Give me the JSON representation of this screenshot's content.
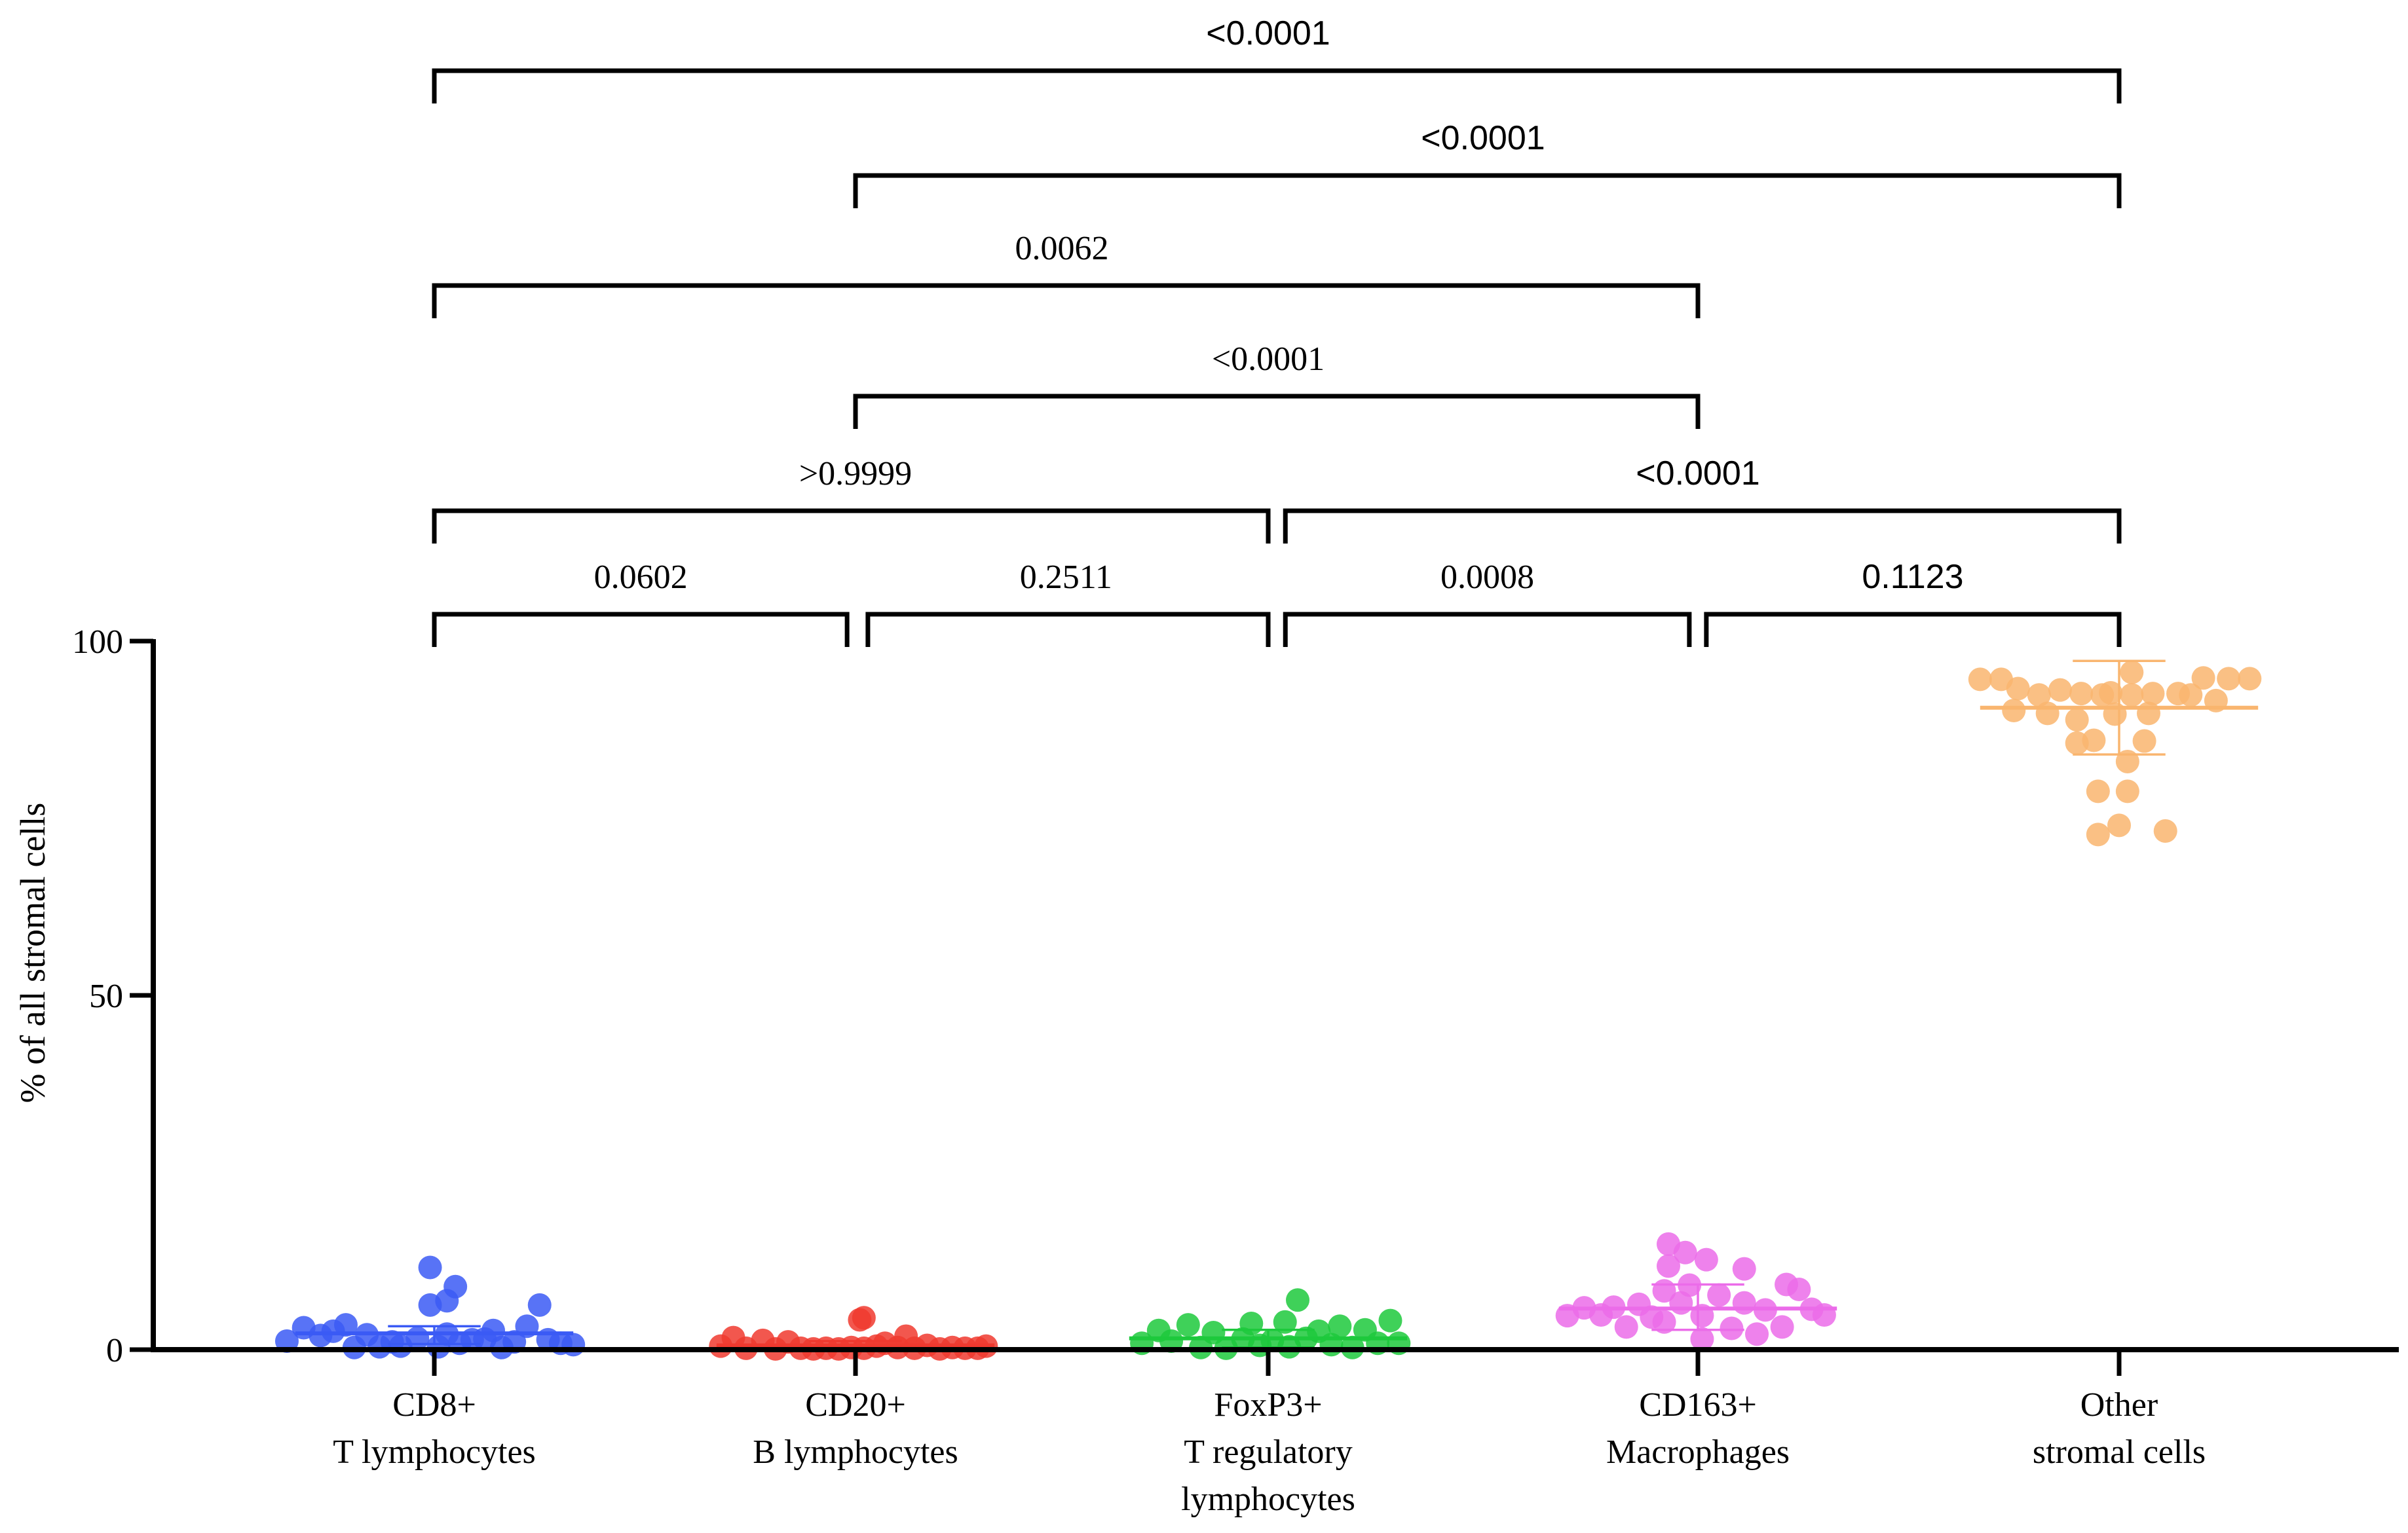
{
  "chart_data": {
    "type": "scatter",
    "ylabel": "% of all stromal cells",
    "xlabel": "",
    "title": "",
    "ylim": [
      0,
      100
    ],
    "yticks": [
      0,
      50,
      100
    ],
    "categories": [
      [
        "CD8+",
        "T lymphocytes"
      ],
      [
        "CD20+",
        "B lymphocytes"
      ],
      [
        "FoxP3+",
        "T regulatory",
        "lymphocytes"
      ],
      [
        "CD163+",
        "Macrophages"
      ],
      [
        "Other",
        "stromal cells"
      ]
    ],
    "series": [
      {
        "name": "CD8+ T lymphocytes",
        "color": "#3B5BF5",
        "mean": 2.3,
        "sd": [
          0.8,
          3.3
        ],
        "points": [
          {
            "dx": -0.35,
            "y": 1.2
          },
          {
            "dx": -0.31,
            "y": 3.1
          },
          {
            "dx": -0.27,
            "y": 2.0
          },
          {
            "dx": -0.24,
            "y": 2.6
          },
          {
            "dx": -0.21,
            "y": 3.5
          },
          {
            "dx": -0.19,
            "y": 0.3
          },
          {
            "dx": -0.16,
            "y": 2.1
          },
          {
            "dx": -0.13,
            "y": 0.4
          },
          {
            "dx": -0.1,
            "y": 1.1
          },
          {
            "dx": -0.08,
            "y": 0.5
          },
          {
            "dx": -0.04,
            "y": 1.6
          },
          {
            "dx": -0.01,
            "y": 11.6
          },
          {
            "dx": -0.01,
            "y": 6.3
          },
          {
            "dx": 0.01,
            "y": 0.4
          },
          {
            "dx": 0.03,
            "y": 2.2
          },
          {
            "dx": 0.03,
            "y": 6.9
          },
          {
            "dx": 0.05,
            "y": 8.9
          },
          {
            "dx": 0.06,
            "y": 0.9
          },
          {
            "dx": 0.09,
            "y": 1.4
          },
          {
            "dx": 0.12,
            "y": 1.5
          },
          {
            "dx": 0.14,
            "y": 2.7
          },
          {
            "dx": 0.16,
            "y": 0.3
          },
          {
            "dx": 0.19,
            "y": 1.1
          },
          {
            "dx": 0.22,
            "y": 3.3
          },
          {
            "dx": 0.25,
            "y": 6.3
          },
          {
            "dx": 0.27,
            "y": 1.4
          },
          {
            "dx": 0.3,
            "y": 0.9
          },
          {
            "dx": 0.33,
            "y": 0.7
          }
        ]
      },
      {
        "name": "CD20+ B lymphocytes",
        "color": "#F03A2F",
        "mean": 0.6,
        "sd": [
          0.1,
          1.2
        ],
        "points": [
          {
            "dx": -0.32,
            "y": 0.5
          },
          {
            "dx": -0.29,
            "y": 1.7
          },
          {
            "dx": -0.26,
            "y": 0.2
          },
          {
            "dx": -0.22,
            "y": 1.3
          },
          {
            "dx": -0.19,
            "y": 0.1
          },
          {
            "dx": -0.16,
            "y": 1.1
          },
          {
            "dx": -0.13,
            "y": 0.2
          },
          {
            "dx": -0.1,
            "y": 0.1
          },
          {
            "dx": -0.07,
            "y": 0.2
          },
          {
            "dx": -0.04,
            "y": 0.1
          },
          {
            "dx": -0.01,
            "y": 0.3
          },
          {
            "dx": 0.01,
            "y": 4.2
          },
          {
            "dx": 0.02,
            "y": 0.2
          },
          {
            "dx": 0.02,
            "y": 4.5
          },
          {
            "dx": 0.05,
            "y": 0.5
          },
          {
            "dx": 0.07,
            "y": 0.9
          },
          {
            "dx": 0.1,
            "y": 0.3
          },
          {
            "dx": 0.12,
            "y": 1.9
          },
          {
            "dx": 0.14,
            "y": 0.2
          },
          {
            "dx": 0.17,
            "y": 0.6
          },
          {
            "dx": 0.2,
            "y": 0.1
          },
          {
            "dx": 0.23,
            "y": 0.3
          },
          {
            "dx": 0.26,
            "y": 0.2
          },
          {
            "dx": 0.29,
            "y": 0.2
          },
          {
            "dx": 0.31,
            "y": 0.5
          }
        ]
      },
      {
        "name": "FoxP3+ T regulatory lymphocytes",
        "color": "#1DC93C",
        "mean": 1.6,
        "sd": [
          0.3,
          2.8
        ],
        "points": [
          {
            "dx": -0.3,
            "y": 0.9
          },
          {
            "dx": -0.26,
            "y": 2.7
          },
          {
            "dx": -0.23,
            "y": 1.2
          },
          {
            "dx": -0.19,
            "y": 3.5
          },
          {
            "dx": -0.16,
            "y": 0.3
          },
          {
            "dx": -0.13,
            "y": 2.4
          },
          {
            "dx": -0.1,
            "y": 0.2
          },
          {
            "dx": -0.06,
            "y": 1.5
          },
          {
            "dx": -0.04,
            "y": 3.7
          },
          {
            "dx": -0.02,
            "y": 0.6
          },
          {
            "dx": 0.01,
            "y": 1.3
          },
          {
            "dx": 0.04,
            "y": 3.9
          },
          {
            "dx": 0.05,
            "y": 0.4
          },
          {
            "dx": 0.07,
            "y": 7.0
          },
          {
            "dx": 0.09,
            "y": 1.6
          },
          {
            "dx": 0.12,
            "y": 2.6
          },
          {
            "dx": 0.15,
            "y": 0.7
          },
          {
            "dx": 0.17,
            "y": 3.3
          },
          {
            "dx": 0.2,
            "y": 0.3
          },
          {
            "dx": 0.23,
            "y": 2.8
          },
          {
            "dx": 0.26,
            "y": 0.9
          },
          {
            "dx": 0.29,
            "y": 4.1
          },
          {
            "dx": 0.31,
            "y": 0.9
          }
        ]
      },
      {
        "name": "CD163+ Macrophages",
        "color": "#EB6CE9",
        "mean": 5.8,
        "sd": [
          2.8,
          9.2
        ],
        "points": [
          {
            "dx": -0.31,
            "y": 4.8
          },
          {
            "dx": -0.27,
            "y": 5.9
          },
          {
            "dx": -0.23,
            "y": 4.9
          },
          {
            "dx": -0.2,
            "y": 6.0
          },
          {
            "dx": -0.17,
            "y": 3.2
          },
          {
            "dx": -0.14,
            "y": 6.4
          },
          {
            "dx": -0.11,
            "y": 4.6
          },
          {
            "dx": -0.08,
            "y": 8.3
          },
          {
            "dx": -0.08,
            "y": 3.9
          },
          {
            "dx": -0.07,
            "y": 11.8
          },
          {
            "dx": -0.07,
            "y": 14.9
          },
          {
            "dx": -0.04,
            "y": 6.6
          },
          {
            "dx": -0.03,
            "y": 13.7
          },
          {
            "dx": -0.02,
            "y": 9.1
          },
          {
            "dx": 0.01,
            "y": 1.5
          },
          {
            "dx": 0.01,
            "y": 4.8
          },
          {
            "dx": 0.02,
            "y": 12.7
          },
          {
            "dx": 0.05,
            "y": 7.7
          },
          {
            "dx": 0.08,
            "y": 3.0
          },
          {
            "dx": 0.11,
            "y": 6.6
          },
          {
            "dx": 0.11,
            "y": 11.4
          },
          {
            "dx": 0.14,
            "y": 2.2
          },
          {
            "dx": 0.16,
            "y": 5.6
          },
          {
            "dx": 0.2,
            "y": 3.2
          },
          {
            "dx": 0.21,
            "y": 9.2
          },
          {
            "dx": 0.24,
            "y": 8.5
          },
          {
            "dx": 0.27,
            "y": 5.7
          },
          {
            "dx": 0.3,
            "y": 4.9
          }
        ]
      },
      {
        "name": "Other stromal cells",
        "color": "#F9B56F",
        "mean": 90.6,
        "sd": [
          84.0,
          97.2
        ],
        "points": [
          {
            "dx": -0.33,
            "y": 94.6
          },
          {
            "dx": -0.28,
            "y": 94.6
          },
          {
            "dx": -0.25,
            "y": 90.2
          },
          {
            "dx": -0.24,
            "y": 93.3
          },
          {
            "dx": -0.19,
            "y": 92.4
          },
          {
            "dx": -0.17,
            "y": 89.8
          },
          {
            "dx": -0.14,
            "y": 93.1
          },
          {
            "dx": -0.1,
            "y": 88.9
          },
          {
            "dx": -0.1,
            "y": 85.6
          },
          {
            "dx": -0.09,
            "y": 92.6
          },
          {
            "dx": -0.06,
            "y": 86.0
          },
          {
            "dx": -0.05,
            "y": 78.8
          },
          {
            "dx": -0.05,
            "y": 72.7
          },
          {
            "dx": -0.04,
            "y": 92.4
          },
          {
            "dx": -0.02,
            "y": 92.7
          },
          {
            "dx": -0.01,
            "y": 89.7
          },
          {
            "dx": 0.0,
            "y": 74.0
          },
          {
            "dx": 0.02,
            "y": 83.0
          },
          {
            "dx": 0.02,
            "y": 78.8
          },
          {
            "dx": 0.03,
            "y": 92.4
          },
          {
            "dx": 0.03,
            "y": 95.6
          },
          {
            "dx": 0.06,
            "y": 85.9
          },
          {
            "dx": 0.07,
            "y": 89.8
          },
          {
            "dx": 0.08,
            "y": 92.6
          },
          {
            "dx": 0.11,
            "y": 73.2
          },
          {
            "dx": 0.14,
            "y": 92.6
          },
          {
            "dx": 0.17,
            "y": 92.4
          },
          {
            "dx": 0.2,
            "y": 94.8
          },
          {
            "dx": 0.23,
            "y": 91.6
          },
          {
            "dx": 0.26,
            "y": 94.7
          },
          {
            "dx": 0.31,
            "y": 94.7
          }
        ]
      }
    ],
    "annotations": [
      {
        "label": "0.0602",
        "from": 0,
        "to": 0.98,
        "level": 0,
        "label_x": 0.49,
        "font": "serif"
      },
      {
        "label": "0.2511",
        "from": 1.03,
        "to": 2.0,
        "level": 0,
        "label_x": 1.51,
        "font": "serif"
      },
      {
        "label": "0.0008",
        "from": 2.04,
        "to": 2.98,
        "level": 0,
        "label_x": 2.51,
        "font": "serif"
      },
      {
        "label": "0.1123",
        "from": 3.02,
        "to": 4.0,
        "level": 0,
        "label_x": 3.51,
        "font": "sans"
      },
      {
        "label": ">0.9999",
        "from": 0,
        "to": 2.0,
        "level": 1,
        "label_x": 1.0,
        "font": "serif"
      },
      {
        "label": "<0.0001",
        "from": 2.04,
        "to": 4.0,
        "level": 1,
        "label_x": 3.0,
        "font": "sans"
      },
      {
        "label": "<0.0001",
        "from": 1.0,
        "to": 3.0,
        "level": 2,
        "label_x": 2.0,
        "font": "serif"
      },
      {
        "label": "0.0062",
        "from": 0,
        "to": 3.0,
        "level": 3,
        "label_x": 1.5,
        "font": "serif"
      },
      {
        "label": "<0.0001",
        "from": 1.0,
        "to": 4.0,
        "level": 4,
        "label_x": 2.5,
        "font": "sans"
      },
      {
        "label": "<0.0001",
        "from": 0,
        "to": 4.0,
        "level": 5,
        "label_x": 2.0,
        "font": "sans"
      }
    ]
  }
}
